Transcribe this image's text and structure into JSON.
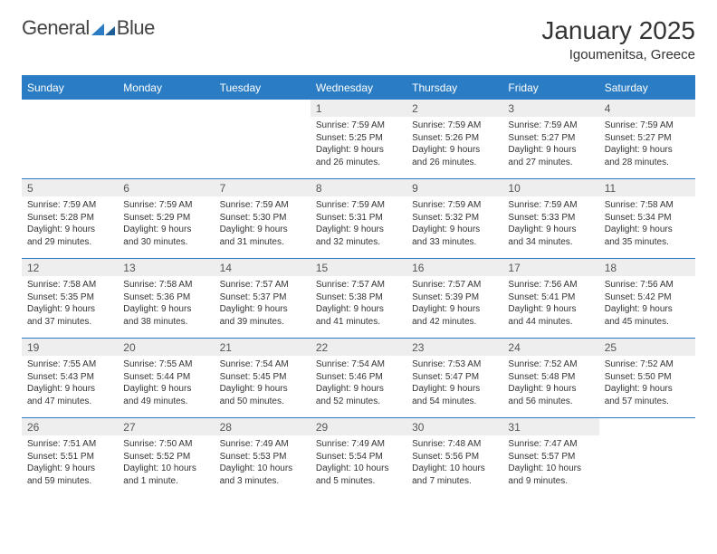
{
  "brand": {
    "word1": "General",
    "word2": "Blue"
  },
  "title": "January 2025",
  "location": "Igoumenitsa, Greece",
  "colors": {
    "accent": "#2a7cc4",
    "header_bg": "#2a7cc4",
    "daynum_bg": "#eeeeee",
    "text": "#333333",
    "page_bg": "#ffffff"
  },
  "weekdays": [
    "Sunday",
    "Monday",
    "Tuesday",
    "Wednesday",
    "Thursday",
    "Friday",
    "Saturday"
  ],
  "weeks": [
    [
      {
        "n": "",
        "sr": "",
        "ss": "",
        "dl": "",
        "empty": true
      },
      {
        "n": "",
        "sr": "",
        "ss": "",
        "dl": "",
        "empty": true
      },
      {
        "n": "",
        "sr": "",
        "ss": "",
        "dl": "",
        "empty": true
      },
      {
        "n": "1",
        "sr": "Sunrise: 7:59 AM",
        "ss": "Sunset: 5:25 PM",
        "dl": "Daylight: 9 hours and 26 minutes."
      },
      {
        "n": "2",
        "sr": "Sunrise: 7:59 AM",
        "ss": "Sunset: 5:26 PM",
        "dl": "Daylight: 9 hours and 26 minutes."
      },
      {
        "n": "3",
        "sr": "Sunrise: 7:59 AM",
        "ss": "Sunset: 5:27 PM",
        "dl": "Daylight: 9 hours and 27 minutes."
      },
      {
        "n": "4",
        "sr": "Sunrise: 7:59 AM",
        "ss": "Sunset: 5:27 PM",
        "dl": "Daylight: 9 hours and 28 minutes."
      }
    ],
    [
      {
        "n": "5",
        "sr": "Sunrise: 7:59 AM",
        "ss": "Sunset: 5:28 PM",
        "dl": "Daylight: 9 hours and 29 minutes."
      },
      {
        "n": "6",
        "sr": "Sunrise: 7:59 AM",
        "ss": "Sunset: 5:29 PM",
        "dl": "Daylight: 9 hours and 30 minutes."
      },
      {
        "n": "7",
        "sr": "Sunrise: 7:59 AM",
        "ss": "Sunset: 5:30 PM",
        "dl": "Daylight: 9 hours and 31 minutes."
      },
      {
        "n": "8",
        "sr": "Sunrise: 7:59 AM",
        "ss": "Sunset: 5:31 PM",
        "dl": "Daylight: 9 hours and 32 minutes."
      },
      {
        "n": "9",
        "sr": "Sunrise: 7:59 AM",
        "ss": "Sunset: 5:32 PM",
        "dl": "Daylight: 9 hours and 33 minutes."
      },
      {
        "n": "10",
        "sr": "Sunrise: 7:59 AM",
        "ss": "Sunset: 5:33 PM",
        "dl": "Daylight: 9 hours and 34 minutes."
      },
      {
        "n": "11",
        "sr": "Sunrise: 7:58 AM",
        "ss": "Sunset: 5:34 PM",
        "dl": "Daylight: 9 hours and 35 minutes."
      }
    ],
    [
      {
        "n": "12",
        "sr": "Sunrise: 7:58 AM",
        "ss": "Sunset: 5:35 PM",
        "dl": "Daylight: 9 hours and 37 minutes."
      },
      {
        "n": "13",
        "sr": "Sunrise: 7:58 AM",
        "ss": "Sunset: 5:36 PM",
        "dl": "Daylight: 9 hours and 38 minutes."
      },
      {
        "n": "14",
        "sr": "Sunrise: 7:57 AM",
        "ss": "Sunset: 5:37 PM",
        "dl": "Daylight: 9 hours and 39 minutes."
      },
      {
        "n": "15",
        "sr": "Sunrise: 7:57 AM",
        "ss": "Sunset: 5:38 PM",
        "dl": "Daylight: 9 hours and 41 minutes."
      },
      {
        "n": "16",
        "sr": "Sunrise: 7:57 AM",
        "ss": "Sunset: 5:39 PM",
        "dl": "Daylight: 9 hours and 42 minutes."
      },
      {
        "n": "17",
        "sr": "Sunrise: 7:56 AM",
        "ss": "Sunset: 5:41 PM",
        "dl": "Daylight: 9 hours and 44 minutes."
      },
      {
        "n": "18",
        "sr": "Sunrise: 7:56 AM",
        "ss": "Sunset: 5:42 PM",
        "dl": "Daylight: 9 hours and 45 minutes."
      }
    ],
    [
      {
        "n": "19",
        "sr": "Sunrise: 7:55 AM",
        "ss": "Sunset: 5:43 PM",
        "dl": "Daylight: 9 hours and 47 minutes."
      },
      {
        "n": "20",
        "sr": "Sunrise: 7:55 AM",
        "ss": "Sunset: 5:44 PM",
        "dl": "Daylight: 9 hours and 49 minutes."
      },
      {
        "n": "21",
        "sr": "Sunrise: 7:54 AM",
        "ss": "Sunset: 5:45 PM",
        "dl": "Daylight: 9 hours and 50 minutes."
      },
      {
        "n": "22",
        "sr": "Sunrise: 7:54 AM",
        "ss": "Sunset: 5:46 PM",
        "dl": "Daylight: 9 hours and 52 minutes."
      },
      {
        "n": "23",
        "sr": "Sunrise: 7:53 AM",
        "ss": "Sunset: 5:47 PM",
        "dl": "Daylight: 9 hours and 54 minutes."
      },
      {
        "n": "24",
        "sr": "Sunrise: 7:52 AM",
        "ss": "Sunset: 5:48 PM",
        "dl": "Daylight: 9 hours and 56 minutes."
      },
      {
        "n": "25",
        "sr": "Sunrise: 7:52 AM",
        "ss": "Sunset: 5:50 PM",
        "dl": "Daylight: 9 hours and 57 minutes."
      }
    ],
    [
      {
        "n": "26",
        "sr": "Sunrise: 7:51 AM",
        "ss": "Sunset: 5:51 PM",
        "dl": "Daylight: 9 hours and 59 minutes."
      },
      {
        "n": "27",
        "sr": "Sunrise: 7:50 AM",
        "ss": "Sunset: 5:52 PM",
        "dl": "Daylight: 10 hours and 1 minute."
      },
      {
        "n": "28",
        "sr": "Sunrise: 7:49 AM",
        "ss": "Sunset: 5:53 PM",
        "dl": "Daylight: 10 hours and 3 minutes."
      },
      {
        "n": "29",
        "sr": "Sunrise: 7:49 AM",
        "ss": "Sunset: 5:54 PM",
        "dl": "Daylight: 10 hours and 5 minutes."
      },
      {
        "n": "30",
        "sr": "Sunrise: 7:48 AM",
        "ss": "Sunset: 5:56 PM",
        "dl": "Daylight: 10 hours and 7 minutes."
      },
      {
        "n": "31",
        "sr": "Sunrise: 7:47 AM",
        "ss": "Sunset: 5:57 PM",
        "dl": "Daylight: 10 hours and 9 minutes."
      },
      {
        "n": "",
        "sr": "",
        "ss": "",
        "dl": "",
        "empty": true
      }
    ]
  ]
}
